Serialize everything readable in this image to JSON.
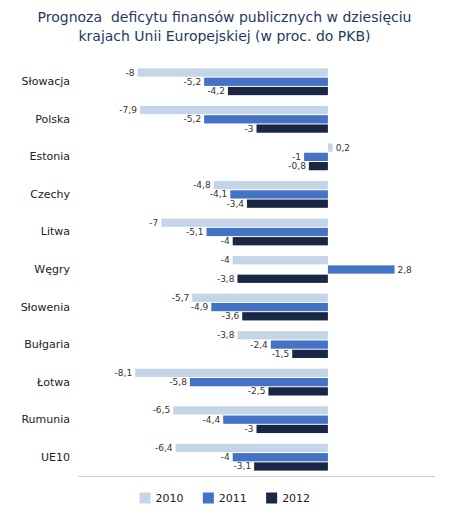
{
  "chart_data": {
    "type": "bar",
    "orientation": "horizontal",
    "title": "Prognoza  deficytu finansów publicznych w dziesięciu\nkrajach Unii Europejskiej (w proc. do PKB)",
    "categories": [
      "Słowacja",
      "Polska",
      "Estonia",
      "Czechy",
      "Litwa",
      "Węgry",
      "Słowenia",
      "Bułgaria",
      "Łotwa",
      "Rumunia",
      "UE10"
    ],
    "series": [
      {
        "name": "2010",
        "color": "#c5d5e8",
        "values": [
          -8.0,
          -7.9,
          0.2,
          -4.8,
          -7.0,
          -4.0,
          -5.7,
          -3.8,
          -8.1,
          -6.5,
          -6.4
        ],
        "value_labels": [
          "-8",
          "-7,9",
          "0,2",
          "-4,8",
          "-7",
          "-4",
          "-5,7",
          "-3,8",
          "-8,1",
          "-6,5",
          "-6,4"
        ]
      },
      {
        "name": "2011",
        "color": "#4472c4",
        "values": [
          -5.2,
          -5.2,
          -1.0,
          -4.1,
          -5.1,
          2.8,
          -4.9,
          -2.4,
          -5.8,
          -4.4,
          -4.0
        ],
        "value_labels": [
          "-5,2",
          "-5,2",
          "-1",
          "-4,1",
          "-5,1",
          "2,8",
          "-4,9",
          "-2,4",
          "-5,8",
          "-4,4",
          "-4"
        ]
      },
      {
        "name": "2012",
        "color": "#1a2744",
        "values": [
          -4.2,
          -3.0,
          -0.8,
          -3.4,
          -4.0,
          -3.8,
          -3.6,
          -1.5,
          -2.5,
          -3.0,
          -3.1
        ],
        "value_labels": [
          "-4,2",
          "-3",
          "-0,8",
          "-3,4",
          "-4",
          "-3,8",
          "-3,6",
          "-1,5",
          "-2,5",
          "-3",
          "-3,1"
        ]
      }
    ],
    "xlim": [
      -10.5,
      4.5
    ],
    "data_labels": true,
    "tick_labels": "y",
    "grid": false,
    "legend": "bottom"
  }
}
